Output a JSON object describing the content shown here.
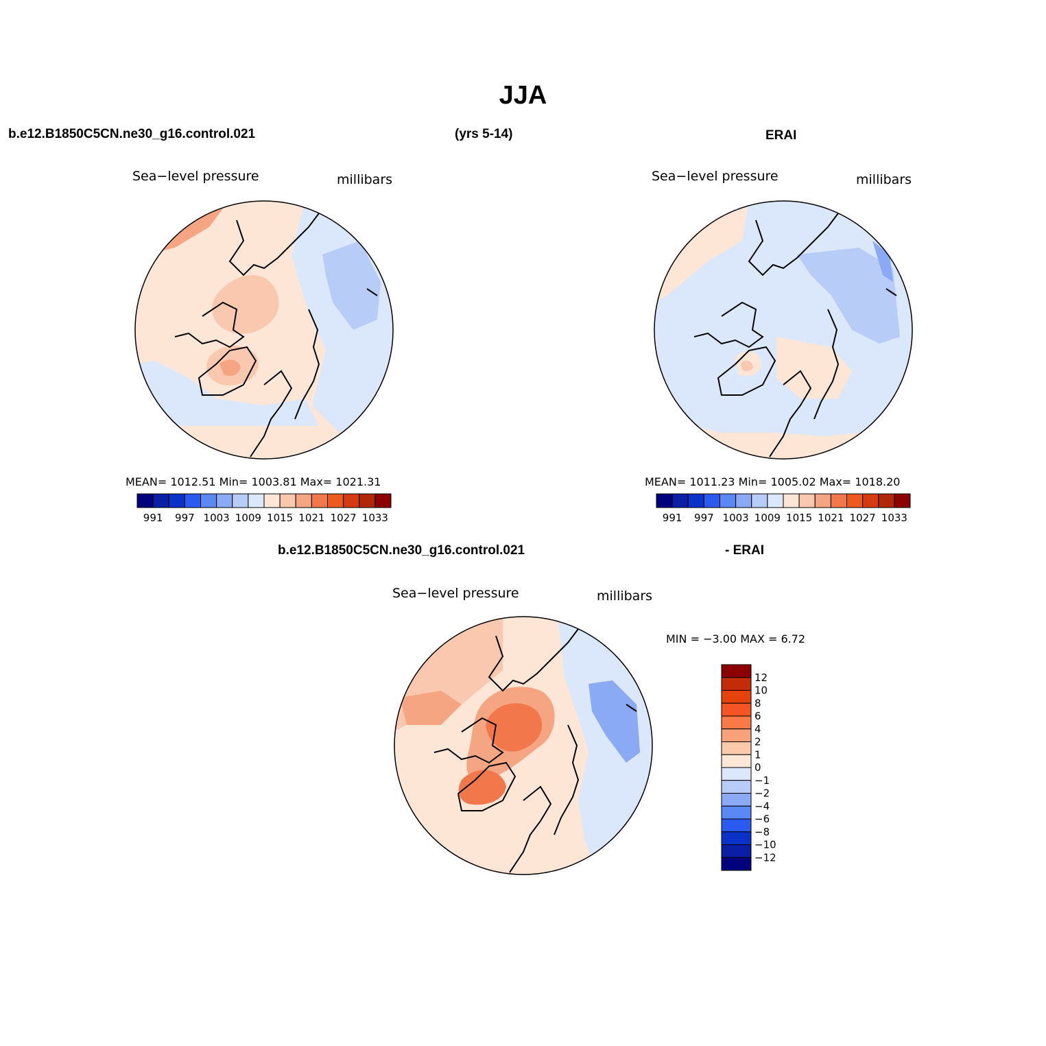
{
  "page_title": "JJA",
  "header": {
    "case_name": "b.e12.B1850C5CN.ne30_g16.control.021",
    "years": "(yrs 5-14)",
    "obs_name": "ERAI"
  },
  "diff_header": {
    "case_name": "b.e12.B1850C5CN.ne30_g16.control.021",
    "obs_suffix": "- ERAI"
  },
  "panels": [
    {
      "variable": "Sea−level pressure",
      "units": "millibars",
      "stats": "MEAN=  1012.51    Min=  1003.81    Max=  1021.31"
    },
    {
      "variable": "Sea−level pressure",
      "units": "millibars",
      "stats": "MEAN=  1011.23    Min=  1005.02    Max=  1018.20"
    },
    {
      "variable": "Sea−level pressure",
      "units": "millibars",
      "stats": "MIN =   −3.00  MAX =     6.72"
    }
  ],
  "chart_data": [
    {
      "type": "heatmap",
      "projection": "north polar stereographic",
      "title": "Sea−level pressure",
      "units": "millibars",
      "mean": 1012.51,
      "min": 1003.81,
      "max": 1021.31,
      "colorbar": {
        "orientation": "horizontal",
        "levels": [
          988,
          991,
          994,
          997,
          1000,
          1003,
          1006,
          1009,
          1012,
          1015,
          1018,
          1021,
          1024,
          1027,
          1030,
          1033
        ],
        "tick_labels": [
          "991",
          "997",
          "1003",
          "1009",
          "1015",
          "1021",
          "1027",
          "1033"
        ],
        "colors": [
          "#00007f",
          "#0a1ea6",
          "#0a32c8",
          "#2a5af0",
          "#5a88f5",
          "#8aaaf5",
          "#b8ccf8",
          "#dbe8fc",
          "#fde6d6",
          "#f9c8ae",
          "#f5a582",
          "#f2784c",
          "#ee5a1e",
          "#d63a10",
          "#b02808",
          "#8c0000"
        ]
      }
    },
    {
      "type": "heatmap",
      "projection": "north polar stereographic",
      "title": "Sea−level pressure",
      "units": "millibars",
      "mean": 1011.23,
      "min": 1005.02,
      "max": 1018.2,
      "colorbar": {
        "orientation": "horizontal",
        "levels": [
          988,
          991,
          994,
          997,
          1000,
          1003,
          1006,
          1009,
          1012,
          1015,
          1018,
          1021,
          1024,
          1027,
          1030,
          1033
        ],
        "tick_labels": [
          "991",
          "997",
          "1003",
          "1009",
          "1015",
          "1021",
          "1027",
          "1033"
        ],
        "colors": [
          "#00007f",
          "#0a1ea6",
          "#0a32c8",
          "#2a5af0",
          "#5a88f5",
          "#8aaaf5",
          "#b8ccf8",
          "#dbe8fc",
          "#fde6d6",
          "#f9c8ae",
          "#f5a582",
          "#f2784c",
          "#ee5a1e",
          "#d63a10",
          "#b02808",
          "#8c0000"
        ]
      }
    },
    {
      "type": "heatmap",
      "projection": "north polar stereographic",
      "title": "Sea−level pressure",
      "units": "millibars",
      "min": -3.0,
      "max": 6.72,
      "colorbar": {
        "orientation": "vertical",
        "tick_labels": [
          "12",
          "10",
          "8",
          "6",
          "4",
          "2",
          "1",
          "0",
          "−1",
          "−2",
          "−4",
          "−6",
          "−8",
          "−10",
          "−12"
        ],
        "colors": [
          "#8c0000",
          "#c42c08",
          "#e5420c",
          "#f55424",
          "#f97a46",
          "#f9a27a",
          "#fcc9a9",
          "#fde8d8",
          "#dbe8fc",
          "#b8ccf8",
          "#8aaaf5",
          "#5a88f5",
          "#2a5af0",
          "#0a32c8",
          "#0a1ea6",
          "#00007f"
        ]
      }
    }
  ]
}
